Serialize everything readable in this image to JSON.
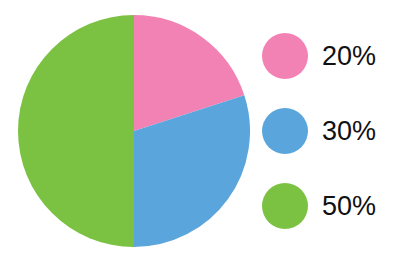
{
  "chart_data": {
    "type": "pie",
    "categories": [
      "20%",
      "30%",
      "50%"
    ],
    "values": [
      20,
      30,
      50
    ],
    "colors": [
      "#f282b4",
      "#5aa5dc",
      "#7cc242"
    ],
    "legend": "right"
  }
}
